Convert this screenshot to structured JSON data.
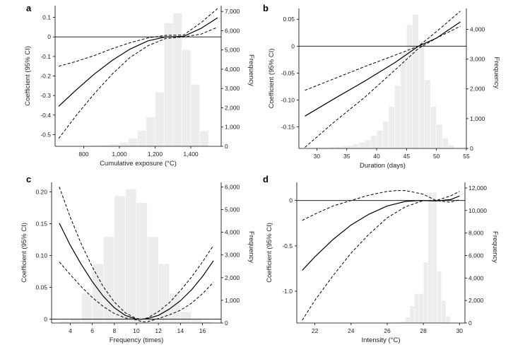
{
  "chart_data": [
    {
      "panel": "a",
      "type": "line",
      "xlabel": "Cumulative exposure (°C)",
      "ylabel": "Coefficient (95% CI)",
      "y2label": "Frequency",
      "xlim": [
        640,
        1570
      ],
      "ylim": [
        -0.56,
        0.16
      ],
      "y2lim": [
        0,
        7300
      ],
      "xticks": [
        800,
        1000,
        1200,
        1400
      ],
      "xtick_labels": [
        "800",
        "1,000",
        "1,200",
        "1,400"
      ],
      "yticks": [
        -0.5,
        -0.4,
        -0.3,
        -0.2,
        -0.1,
        0,
        0.1
      ],
      "ytick_labels": [
        "-0.5",
        "-0.4",
        "-0.3",
        "-0.2",
        "-0.1",
        "0",
        "0.1"
      ],
      "y2ticks": [
        0,
        1000,
        2000,
        3000,
        4000,
        5000,
        6000,
        7000
      ],
      "y2tick_labels": [
        "0",
        "1,000",
        "2,000",
        "3,000",
        "4,000",
        "5,000",
        "6,000",
        "7,000"
      ],
      "zero_line": 0,
      "histogram": {
        "bin_edges": [
          800,
          850,
          900,
          950,
          1000,
          1050,
          1100,
          1150,
          1200,
          1250,
          1300,
          1350,
          1400,
          1450,
          1500
        ],
        "counts": [
          10,
          30,
          60,
          100,
          200,
          420,
          820,
          1500,
          2800,
          6400,
          6900,
          5000,
          3200,
          800
        ]
      },
      "series": [
        {
          "style": "solid",
          "x": [
            660,
            760,
            860,
            960,
            1060,
            1160,
            1260,
            1360,
            1460,
            1550
          ],
          "y": [
            -0.355,
            -0.27,
            -0.19,
            -0.12,
            -0.062,
            -0.02,
            0.0,
            0.003,
            0.045,
            0.098
          ]
        },
        {
          "style": "dashed",
          "x": [
            660,
            760,
            860,
            960,
            1060,
            1160,
            1260,
            1360,
            1460,
            1550
          ],
          "y": [
            -0.52,
            -0.4,
            -0.29,
            -0.19,
            -0.105,
            -0.045,
            -0.008,
            0.0,
            0.015,
            0.05
          ]
        },
        {
          "style": "dashed",
          "x": [
            660,
            760,
            860,
            960,
            1060,
            1160,
            1260,
            1360,
            1460,
            1550
          ],
          "y": [
            -0.15,
            -0.125,
            -0.095,
            -0.06,
            -0.03,
            -0.005,
            0.008,
            0.01,
            0.075,
            0.145
          ]
        }
      ]
    },
    {
      "panel": "b",
      "type": "line",
      "xlabel": "Duration (days)",
      "ylabel": "Coefficient (95% CI)",
      "y2label": "Frequency",
      "xlim": [
        27,
        55
      ],
      "ylim": [
        -0.19,
        0.07
      ],
      "y2lim": [
        0,
        4700
      ],
      "xticks": [
        30,
        35,
        40,
        45,
        50,
        55
      ],
      "xtick_labels": [
        "30",
        "35",
        "40",
        "45",
        "50",
        "55"
      ],
      "yticks": [
        -0.15,
        -0.1,
        -0.05,
        0,
        0.05
      ],
      "ytick_labels": [
        "-0.15",
        "-0.10",
        "-0.05",
        "0",
        "0.05"
      ],
      "y2ticks": [
        0,
        1000,
        2000,
        3000,
        4000
      ],
      "y2tick_labels": [
        "0",
        "1,000",
        "2,000",
        "3,000",
        "4,000"
      ],
      "zero_line": 0,
      "histogram": {
        "bin_edges": [
          30,
          31,
          32,
          33,
          34,
          35,
          36,
          37,
          38,
          39,
          40,
          41,
          42,
          43,
          44,
          45,
          46,
          47,
          48,
          49,
          50,
          51,
          52,
          53
        ],
        "counts": [
          20,
          30,
          40,
          60,
          80,
          100,
          150,
          200,
          280,
          420,
          600,
          900,
          1400,
          2100,
          3200,
          4150,
          4500,
          3600,
          2300,
          1400,
          800,
          350,
          100
        ]
      },
      "series": [
        {
          "style": "solid",
          "x": [
            28,
            33,
            38,
            43,
            47,
            50,
            54
          ],
          "y": [
            -0.13,
            -0.097,
            -0.065,
            -0.031,
            0.0,
            0.015,
            0.045
          ]
        },
        {
          "style": "dashed",
          "x": [
            28,
            33,
            38,
            43,
            47,
            50,
            54
          ],
          "y": [
            -0.188,
            -0.14,
            -0.095,
            -0.045,
            -0.004,
            0.015,
            0.037
          ]
        },
        {
          "style": "dashed",
          "x": [
            28,
            33,
            38,
            43,
            47,
            50,
            54
          ],
          "y": [
            -0.082,
            -0.06,
            -0.038,
            -0.017,
            0.0,
            0.027,
            0.065
          ]
        }
      ]
    },
    {
      "panel": "c",
      "type": "line",
      "xlabel": "Frequency (times)",
      "ylabel": "Coefficient (95% CI)",
      "y2label": "Frequency",
      "xlim": [
        2.3,
        17.7
      ],
      "ylim": [
        -0.006,
        0.215
      ],
      "y2lim": [
        0,
        6200
      ],
      "xticks": [
        4,
        6,
        8,
        10,
        12,
        14,
        16
      ],
      "xtick_labels": [
        "4",
        "6",
        "8",
        "10",
        "12",
        "14",
        "16"
      ],
      "yticks": [
        0,
        0.05,
        0.1,
        0.15,
        0.2
      ],
      "ytick_labels": [
        "0",
        "0.05",
        "0.10",
        "0.15",
        "0.20"
      ],
      "y2ticks": [
        0,
        1000,
        2000,
        3000,
        4000,
        5000,
        6000
      ],
      "y2tick_labels": [
        "0",
        "1,000",
        "2,000",
        "3,000",
        "4,000",
        "5,000",
        "6,000"
      ],
      "zero_line": 0,
      "histogram": {
        "bin_edges": [
          3,
          4,
          5,
          6,
          7,
          8,
          9,
          10,
          11,
          12,
          13,
          14,
          15,
          16,
          17
        ],
        "counts": [
          80,
          150,
          1300,
          2600,
          3800,
          5600,
          5900,
          5300,
          3800,
          2600,
          1300,
          500,
          150,
          60
        ]
      },
      "series": [
        {
          "style": "solid",
          "x": [
            3,
            4,
            5,
            6,
            7,
            8,
            9,
            10,
            10.5,
            11,
            12,
            13,
            14,
            15,
            16,
            17
          ],
          "y": [
            0.151,
            0.116,
            0.086,
            0.059,
            0.036,
            0.018,
            0.006,
            0.0,
            0.0,
            0.001,
            0.006,
            0.016,
            0.029,
            0.046,
            0.067,
            0.092
          ]
        },
        {
          "style": "dashed",
          "x": [
            3,
            4,
            5,
            6,
            7,
            8,
            9,
            10,
            10.5,
            11,
            12,
            13,
            14,
            15,
            16,
            17
          ],
          "y": [
            0.208,
            0.16,
            0.118,
            0.082,
            0.051,
            0.027,
            0.01,
            0.001,
            0.0,
            0.002,
            0.012,
            0.026,
            0.045,
            0.066,
            0.09,
            0.116
          ]
        },
        {
          "style": "dashed",
          "x": [
            3,
            4,
            5,
            6,
            7,
            8,
            9,
            10,
            10.5,
            11,
            12,
            13,
            14,
            15,
            16,
            17
          ],
          "y": [
            0.09,
            0.07,
            0.051,
            0.034,
            0.02,
            0.009,
            0.002,
            -0.001,
            -0.004,
            -0.004,
            0.001,
            0.007,
            0.014,
            0.025,
            0.04,
            0.058
          ]
        }
      ]
    },
    {
      "panel": "d",
      "type": "line",
      "xlabel": "Intensity (°C)",
      "ylabel": "Coefficient (95% CI)",
      "y2label": "Frequency",
      "xlim": [
        21,
        30.3
      ],
      "ylim": [
        -1.35,
        0.2
      ],
      "y2lim": [
        0,
        12500
      ],
      "xticks": [
        22,
        24,
        26,
        28,
        30
      ],
      "xtick_labels": [
        "22",
        "24",
        "26",
        "28",
        "30"
      ],
      "yticks": [
        -1.0,
        -0.5,
        0
      ],
      "ytick_labels": [
        "-1.0",
        "-0.5",
        "0"
      ],
      "y2ticks": [
        0,
        2000,
        4000,
        6000,
        8000,
        10000,
        12000
      ],
      "y2tick_labels": [
        "0",
        "2,000",
        "4,000",
        "6,000",
        "8,000",
        "10,000",
        "12,000"
      ],
      "zero_line": 0,
      "histogram": {
        "bin_edges": [
          26.5,
          26.75,
          27,
          27.25,
          27.5,
          27.75,
          28,
          28.25,
          28.5,
          28.75,
          29,
          29.25,
          29.5
        ],
        "counts": [
          50,
          150,
          500,
          1500,
          2600,
          2600,
          5400,
          11600,
          11600,
          4600,
          2000,
          600
        ]
      },
      "series": [
        {
          "style": "solid",
          "x": [
            21.3,
            22,
            23,
            24,
            25,
            26,
            27,
            27.8,
            28.7,
            29.5,
            30
          ],
          "y": [
            -0.77,
            -0.62,
            -0.43,
            -0.27,
            -0.15,
            -0.06,
            -0.01,
            0.0,
            -0.005,
            0.01,
            0.05
          ]
        },
        {
          "style": "dashed",
          "x": [
            21.3,
            22,
            23,
            24,
            25,
            26,
            27,
            28,
            28.7,
            29.5,
            30
          ],
          "y": [
            -1.32,
            -1.1,
            -0.83,
            -0.58,
            -0.37,
            -0.19,
            -0.07,
            0.0,
            0.0,
            -0.02,
            0.01
          ]
        },
        {
          "style": "dashed",
          "x": [
            21.3,
            22,
            23,
            24,
            25,
            26,
            26.5,
            27,
            28,
            28.7,
            29.5,
            30
          ],
          "y": [
            -0.22,
            -0.15,
            -0.06,
            0.0,
            0.06,
            0.1,
            0.11,
            0.11,
            0.07,
            0.0,
            0.05,
            0.1
          ]
        }
      ]
    }
  ]
}
